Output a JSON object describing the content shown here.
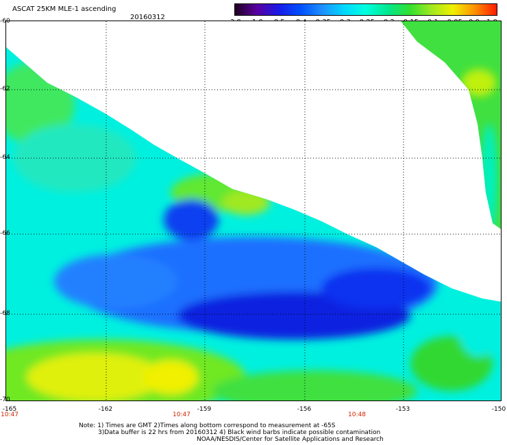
{
  "title": "ASCAT 25KM MLE-1 ascending",
  "date": "20160312",
  "colorbar": {
    "labels": [
      "-3.0",
      "-1.0",
      "-0.5",
      "-0.4",
      "-0.35",
      "-0.3",
      "-0.25",
      "-0.2",
      "-0.15",
      "-0.1",
      "-0.05",
      "0.0",
      "1.0"
    ],
    "colors": [
      "#200020",
      "#5a00a0",
      "#1a1ae6",
      "#0050ff",
      "#1e90ff",
      "#00d8ff",
      "#00ffe0",
      "#00e890",
      "#30e030",
      "#a0e820",
      "#f0f000",
      "#ff9000",
      "#ff1a00"
    ]
  },
  "axes": {
    "lat_labels": [
      "-60",
      "-62",
      "-64",
      "-66",
      "-68",
      "-70"
    ],
    "lon_labels": [
      "-165",
      "-162",
      "-159",
      "-156",
      "-153",
      "-150"
    ]
  },
  "times": [
    "10:47",
    "10:47",
    "10:48"
  ],
  "notes": [
    "Note: 1) Times are GMT 2)Times along bottom correspond to measurement at -65S",
    "3)Data buffer is 22 hrs from 20160312 4) Black wind barbs indicate possible contamination",
    "NOAA/NESDIS/Center for Satellite Applications and Research"
  ]
}
